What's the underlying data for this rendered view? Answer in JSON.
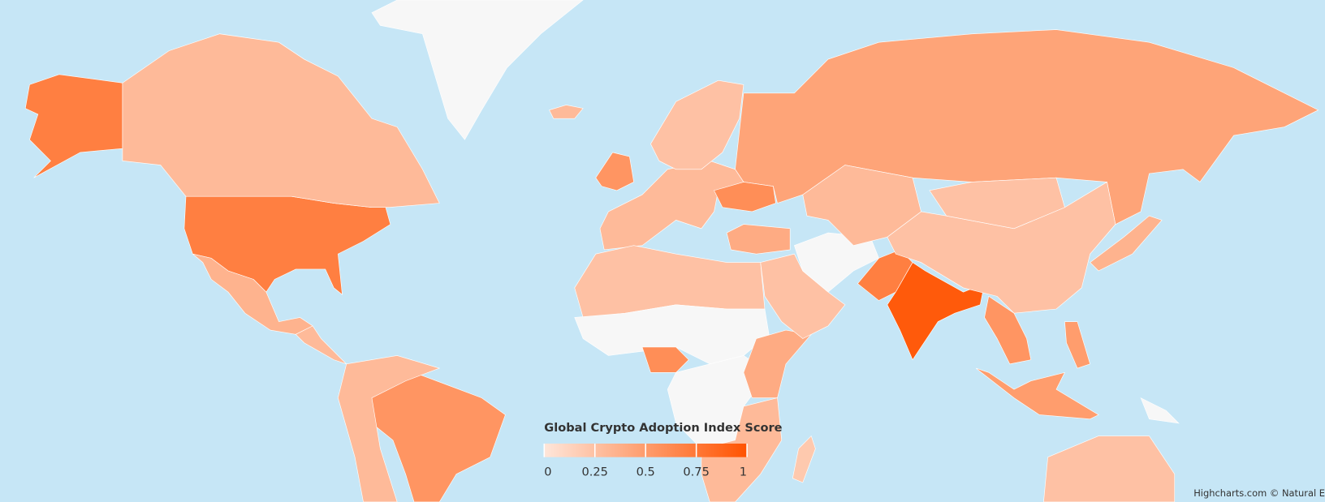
{
  "chart_data": {
    "type": "map",
    "legend_title": "Global Crypto Adoption Index Score",
    "values": [
      0.7,
      0.3,
      null,
      0.35,
      0.3,
      0.55,
      0.3,
      0.45,
      0.3,
      0.6,
      0.55,
      0.25,
      null,
      0.6,
      null,
      0.4,
      0.3,
      0.25,
      null,
      0.7,
      0.95,
      0.25,
      0.3,
      0.25,
      0.55,
      0.5,
      0.5,
      0.35,
      0.25,
      0.4,
      0.2,
      0.25,
      0.3,
      null
    ],
    "colorAxis": {
      "min": 0,
      "max": 1,
      "ticks": [
        0,
        0.25,
        0.5,
        0.75,
        1
      ],
      "minColor": "#fee6da",
      "maxColor": "#ff5300"
    },
    "nullColor": "#f7f7f7",
    "oceanColor": "#c6e6f6",
    "credits": "Highcharts.com © Natural E"
  }
}
